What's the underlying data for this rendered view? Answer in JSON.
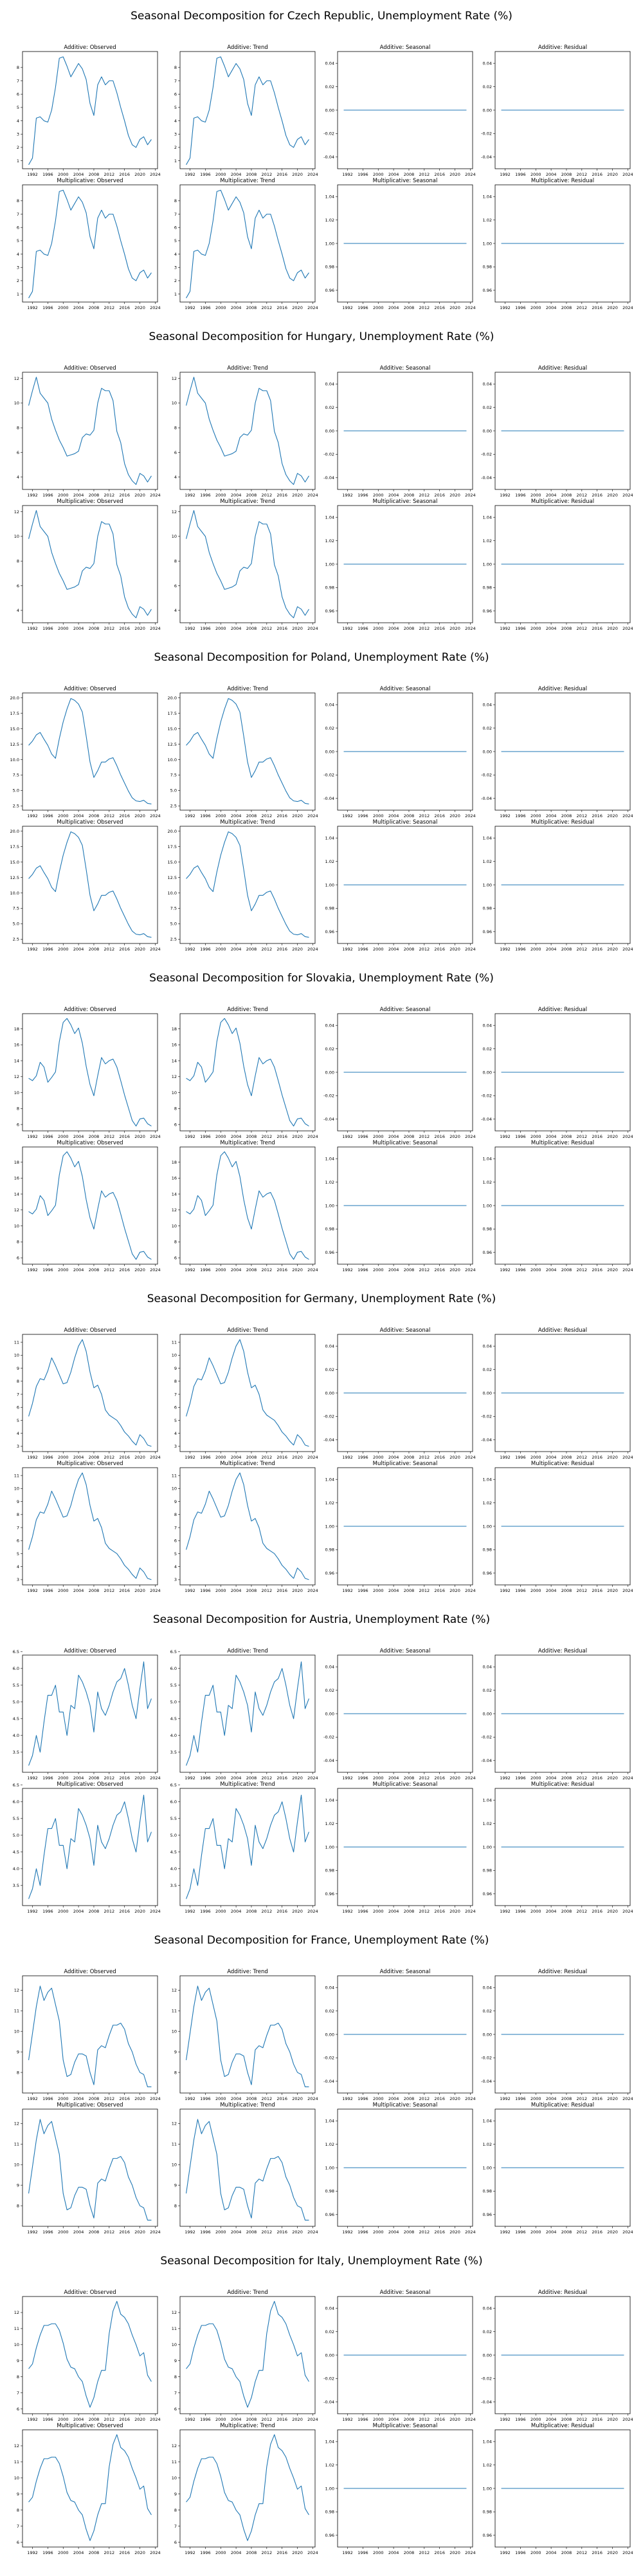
{
  "x_ticks": [
    1992,
    1996,
    2000,
    2004,
    2008,
    2012,
    2016,
    2020,
    2024
  ],
  "panel_titles": {
    "add_obs": "Additive: Observed",
    "add_trend": "Additive: Trend",
    "add_seas": "Additive: Seasonal",
    "add_resid": "Additive: Residual",
    "mul_obs": "Multiplicative: Observed",
    "mul_trend": "Multiplicative: Trend",
    "mul_seas": "Multiplicative: Seasonal",
    "mul_resid": "Multiplicative: Residual"
  },
  "additive_flat": {
    "value": 0.0,
    "ylim": [
      -0.05,
      0.05
    ],
    "ticks": [
      "0.04",
      "0.02",
      "0.00",
      "-0.02",
      "-0.04"
    ]
  },
  "multiplicative_flat": {
    "value": 1.0,
    "ylim": [
      0.95,
      1.05
    ],
    "ticks": [
      "1.04",
      "1.02",
      "1.00",
      "0.98",
      "0.96"
    ]
  },
  "line_color": "#1f77b4",
  "chart_data": [
    {
      "type": "line",
      "title": "Seasonal Decomposition for Czech Republic, Unemployment Rate (%)",
      "x": [
        1991,
        1992,
        1993,
        1994,
        1995,
        1996,
        1997,
        1998,
        1999,
        2000,
        2001,
        2002,
        2003,
        2004,
        2005,
        2006,
        2007,
        2008,
        2009,
        2010,
        2011,
        2012,
        2013,
        2014,
        2015,
        2016,
        2017,
        2018,
        2019,
        2020,
        2021,
        2022,
        2023
      ],
      "values": [
        0.7,
        1.2,
        4.2,
        4.3,
        4.0,
        3.9,
        4.8,
        6.5,
        8.7,
        8.8,
        8.1,
        7.3,
        7.8,
        8.3,
        7.9,
        7.1,
        5.3,
        4.4,
        6.7,
        7.3,
        6.7,
        7.0,
        7.0,
        6.1,
        5.0,
        4.0,
        2.9,
        2.2,
        2.0,
        2.6,
        2.8,
        2.2,
        2.6
      ],
      "yticks": [
        1,
        2,
        3,
        4,
        5,
        6,
        7,
        8
      ],
      "ylim": [
        0.4,
        9.2
      ]
    },
    {
      "type": "line",
      "title": "Seasonal Decomposition for Hungary, Unemployment Rate (%)",
      "x": [
        1991,
        1992,
        1993,
        1994,
        1995,
        1996,
        1997,
        1998,
        1999,
        2000,
        2001,
        2002,
        2003,
        2004,
        2005,
        2006,
        2007,
        2008,
        2009,
        2010,
        2011,
        2012,
        2013,
        2014,
        2015,
        2016,
        2017,
        2018,
        2019,
        2020,
        2021,
        2022,
        2023
      ],
      "values": [
        9.8,
        11.0,
        12.1,
        10.8,
        10.4,
        10.0,
        8.7,
        7.8,
        7.0,
        6.4,
        5.7,
        5.8,
        5.9,
        6.1,
        7.2,
        7.5,
        7.4,
        7.8,
        10.0,
        11.2,
        11.0,
        11.0,
        10.2,
        7.7,
        6.8,
        5.1,
        4.2,
        3.7,
        3.4,
        4.3,
        4.1,
        3.6,
        4.1
      ],
      "yticks": [
        4,
        6,
        8,
        10,
        12
      ],
      "ylim": [
        3.0,
        12.5
      ]
    },
    {
      "type": "line",
      "title": "Seasonal Decomposition for Poland, Unemployment Rate (%)",
      "x": [
        1991,
        1992,
        1993,
        1994,
        1995,
        1996,
        1997,
        1998,
        1999,
        2000,
        2001,
        2002,
        2003,
        2004,
        2005,
        2006,
        2007,
        2008,
        2009,
        2010,
        2011,
        2012,
        2013,
        2014,
        2015,
        2016,
        2017,
        2018,
        2019,
        2020,
        2021,
        2022,
        2023
      ],
      "values": [
        12.3,
        13.0,
        14.0,
        14.4,
        13.3,
        12.3,
        10.9,
        10.2,
        13.4,
        16.1,
        18.2,
        19.9,
        19.6,
        19.0,
        17.7,
        13.8,
        9.6,
        7.1,
        8.2,
        9.6,
        9.6,
        10.1,
        10.3,
        9.0,
        7.5,
        6.2,
        4.9,
        3.8,
        3.3,
        3.2,
        3.4,
        2.9,
        2.8
      ],
      "yticks": [
        2.5,
        5.0,
        7.5,
        10.0,
        12.5,
        15.0,
        17.5,
        20.0
      ],
      "ylim": [
        1.8,
        20.8
      ]
    },
    {
      "type": "line",
      "title": "Seasonal Decomposition for Slovakia, Unemployment Rate (%)",
      "x": [
        1991,
        1992,
        1993,
        1994,
        1995,
        1996,
        1997,
        1998,
        1999,
        2000,
        2001,
        2002,
        2003,
        2004,
        2005,
        2006,
        2007,
        2008,
        2009,
        2010,
        2011,
        2012,
        2013,
        2014,
        2015,
        2016,
        2017,
        2018,
        2019,
        2020,
        2021,
        2022,
        2023
      ],
      "values": [
        11.8,
        11.5,
        12.1,
        13.8,
        13.2,
        11.3,
        11.9,
        12.6,
        16.4,
        18.8,
        19.3,
        18.5,
        17.4,
        18.1,
        16.2,
        13.3,
        11.0,
        9.6,
        12.1,
        14.4,
        13.6,
        14.0,
        14.2,
        13.2,
        11.5,
        9.7,
        8.1,
        6.5,
        5.8,
        6.7,
        6.8,
        6.1,
        5.8
      ],
      "yticks": [
        6,
        8,
        10,
        12,
        14,
        16,
        18
      ],
      "ylim": [
        5.2,
        19.9
      ]
    },
    {
      "type": "line",
      "title": "Seasonal Decomposition for Germany, Unemployment Rate (%)",
      "x": [
        1991,
        1992,
        1993,
        1994,
        1995,
        1996,
        1997,
        1998,
        1999,
        2000,
        2001,
        2002,
        2003,
        2004,
        2005,
        2006,
        2007,
        2008,
        2009,
        2010,
        2011,
        2012,
        2013,
        2014,
        2015,
        2016,
        2017,
        2018,
        2019,
        2020,
        2021,
        2022,
        2023
      ],
      "values": [
        5.3,
        6.3,
        7.6,
        8.2,
        8.1,
        8.8,
        9.8,
        9.2,
        8.5,
        7.8,
        7.9,
        8.7,
        9.8,
        10.7,
        11.2,
        10.3,
        8.7,
        7.5,
        7.7,
        7.0,
        5.8,
        5.4,
        5.2,
        5.0,
        4.6,
        4.1,
        3.8,
        3.4,
        3.1,
        3.9,
        3.6,
        3.1,
        3.0
      ],
      "yticks": [
        3,
        4,
        5,
        6,
        7,
        8,
        9,
        10,
        11
      ],
      "ylim": [
        2.6,
        11.6
      ]
    },
    {
      "type": "line",
      "title": "Seasonal Decomposition for Austria, Unemployment Rate (%)",
      "x": [
        1991,
        1992,
        1993,
        1994,
        1995,
        1996,
        1997,
        1998,
        1999,
        2000,
        2001,
        2002,
        2003,
        2004,
        2005,
        2006,
        2007,
        2008,
        2009,
        2010,
        2011,
        2012,
        2013,
        2014,
        2015,
        2016,
        2017,
        2018,
        2019,
        2020,
        2021,
        2022,
        2023
      ],
      "values": [
        3.1,
        3.4,
        4.0,
        3.5,
        4.4,
        5.2,
        5.2,
        5.5,
        4.7,
        4.7,
        4.0,
        4.9,
        4.8,
        5.8,
        5.6,
        5.3,
        4.9,
        4.1,
        5.3,
        4.8,
        4.6,
        4.9,
        5.3,
        5.6,
        5.7,
        6.0,
        5.5,
        4.9,
        4.5,
        5.4,
        6.2,
        4.8,
        5.1
      ],
      "yticks": [
        3.5,
        4.0,
        4.5,
        5.0,
        5.5,
        6.0,
        6.5
      ],
      "ylim": [
        2.9,
        6.4
      ]
    },
    {
      "type": "line",
      "title": "Seasonal Decomposition for France, Unemployment Rate (%)",
      "x": [
        1991,
        1992,
        1993,
        1994,
        1995,
        1996,
        1997,
        1998,
        1999,
        2000,
        2001,
        2002,
        2003,
        2004,
        2005,
        2006,
        2007,
        2008,
        2009,
        2010,
        2011,
        2012,
        2013,
        2014,
        2015,
        2016,
        2017,
        2018,
        2019,
        2020,
        2021,
        2022,
        2023
      ],
      "values": [
        8.6,
        9.9,
        11.2,
        12.2,
        11.5,
        11.9,
        12.1,
        11.3,
        10.5,
        8.6,
        7.8,
        7.9,
        8.5,
        8.9,
        8.9,
        8.8,
        8.0,
        7.4,
        9.1,
        9.3,
        9.2,
        9.8,
        10.3,
        10.3,
        10.4,
        10.1,
        9.4,
        9.0,
        8.4,
        8.0,
        7.9,
        7.3,
        7.3
      ],
      "yticks": [
        8,
        9,
        10,
        11,
        12
      ],
      "ylim": [
        7.0,
        12.7
      ]
    },
    {
      "type": "line",
      "title": "Seasonal Decomposition for Italy, Unemployment Rate (%)",
      "x": [
        1991,
        1992,
        1993,
        1994,
        1995,
        1996,
        1997,
        1998,
        1999,
        2000,
        2001,
        2002,
        2003,
        2004,
        2005,
        2006,
        2007,
        2008,
        2009,
        2010,
        2011,
        2012,
        2013,
        2014,
        2015,
        2016,
        2017,
        2018,
        2019,
        2020,
        2021,
        2022,
        2023
      ],
      "values": [
        8.5,
        8.8,
        9.8,
        10.6,
        11.2,
        11.2,
        11.3,
        11.3,
        10.9,
        10.1,
        9.1,
        8.6,
        8.5,
        8.0,
        7.7,
        6.8,
        6.1,
        6.7,
        7.7,
        8.4,
        8.4,
        10.7,
        12.1,
        12.7,
        11.9,
        11.7,
        11.3,
        10.6,
        10.0,
        9.3,
        9.5,
        8.1,
        7.7
      ],
      "yticks": [
        6,
        7,
        8,
        9,
        10,
        11,
        12
      ],
      "ylim": [
        5.7,
        13.0
      ]
    }
  ]
}
